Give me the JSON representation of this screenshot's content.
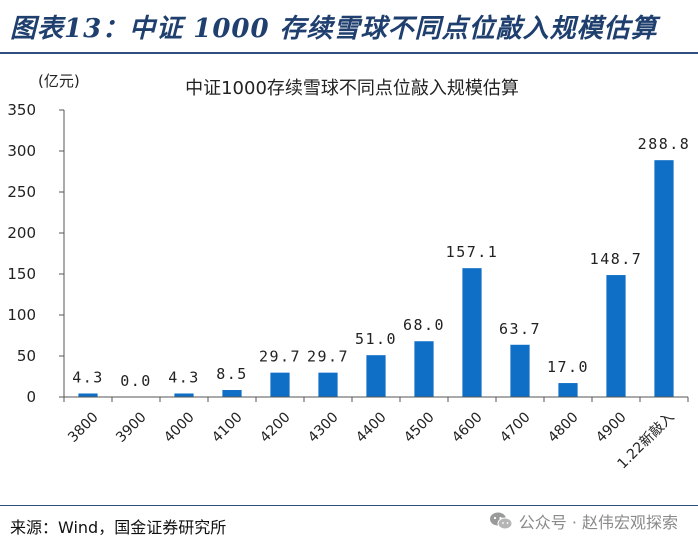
{
  "figure_title": "图表13：中证 1000 存续雪球不同点位敲入规模估算",
  "source": "来源：Wind，国金证券研究所",
  "watermark": "公众号 · 赵伟宏观探索",
  "watermark_icon": "wechat-icon",
  "colors": {
    "bar": "#0f6fc6",
    "title": "#1f3f6e",
    "rule": "#2f4f7f"
  },
  "chart_data": {
    "type": "bar",
    "title": "中证1000存续雪球不同点位敲入规模估算",
    "unit_label": "(亿元)",
    "categories": [
      "3800",
      "3900",
      "4000",
      "4100",
      "4200",
      "4300",
      "4400",
      "4500",
      "4600",
      "4700",
      "4800",
      "4900",
      "1.22新敲入"
    ],
    "values": [
      4.3,
      0.0,
      4.3,
      8.5,
      29.7,
      29.7,
      51.0,
      68.0,
      157.1,
      63.7,
      17.0,
      148.7,
      288.8
    ],
    "data_labels": [
      "4.3",
      "0.0",
      "4.3",
      "8.5",
      "29.7",
      "29.7",
      "51.0",
      "68.0",
      "157.1",
      "63.7",
      "17.0",
      "148.7",
      "288.8"
    ],
    "ylim": [
      0,
      350
    ],
    "yticks": [
      0,
      50,
      100,
      150,
      200,
      250,
      300,
      350
    ],
    "grid": false,
    "legend": "none"
  }
}
